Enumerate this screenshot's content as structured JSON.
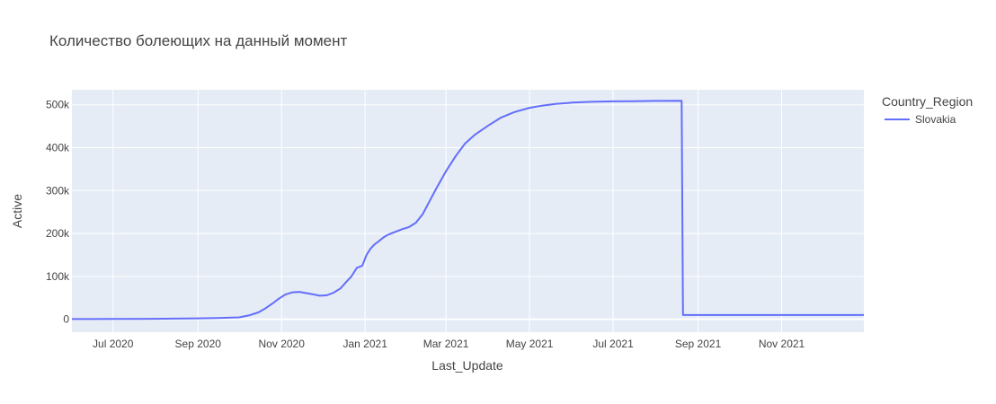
{
  "chart_data": {
    "type": "line",
    "title": "Количество болеющих на данный момент",
    "xlabel": "Last_Update",
    "ylabel": "Active",
    "legend_title": "Country_Region",
    "legend_placement": "top-right",
    "grid": true,
    "colors": {
      "plot_bg": "#E5ECF6",
      "grid": "#ffffff",
      "series": "#636EFA",
      "text": "#444444"
    },
    "x_range": [
      "2020-06-01",
      "2021-12-31"
    ],
    "y_range": [
      -30000,
      535000
    ],
    "x_ticks": [
      {
        "date": "2020-07-01",
        "label": "Jul 2020"
      },
      {
        "date": "2020-09-01",
        "label": "Sep 2020"
      },
      {
        "date": "2020-11-01",
        "label": "Nov 2020"
      },
      {
        "date": "2021-01-01",
        "label": "Jan 2021"
      },
      {
        "date": "2021-03-01",
        "label": "Mar 2021"
      },
      {
        "date": "2021-05-01",
        "label": "May 2021"
      },
      {
        "date": "2021-07-01",
        "label": "Jul 2021"
      },
      {
        "date": "2021-09-01",
        "label": "Sep 2021"
      },
      {
        "date": "2021-11-01",
        "label": "Nov 2021"
      }
    ],
    "y_ticks": [
      {
        "value": 0,
        "label": "0"
      },
      {
        "value": 100000,
        "label": "100k"
      },
      {
        "value": 200000,
        "label": "200k"
      },
      {
        "value": 300000,
        "label": "300k"
      },
      {
        "value": 400000,
        "label": "400k"
      },
      {
        "value": 500000,
        "label": "500k"
      }
    ],
    "series": [
      {
        "name": "Slovakia",
        "x": [
          "2020-06-01",
          "2020-06-15",
          "2020-07-01",
          "2020-07-15",
          "2020-08-01",
          "2020-08-15",
          "2020-09-01",
          "2020-09-15",
          "2020-10-01",
          "2020-10-08",
          "2020-10-15",
          "2020-10-20",
          "2020-10-25",
          "2020-10-30",
          "2020-11-04",
          "2020-11-09",
          "2020-11-14",
          "2020-11-19",
          "2020-11-24",
          "2020-11-29",
          "2020-12-04",
          "2020-12-09",
          "2020-12-14",
          "2020-12-19",
          "2020-12-22",
          "2020-12-26",
          "2020-12-30",
          "2021-01-02",
          "2021-01-05",
          "2021-01-08",
          "2021-01-11",
          "2021-01-14",
          "2021-01-17",
          "2021-01-20",
          "2021-01-24",
          "2021-01-28",
          "2021-02-02",
          "2021-02-07",
          "2021-02-12",
          "2021-02-17",
          "2021-02-22",
          "2021-03-01",
          "2021-03-08",
          "2021-03-15",
          "2021-03-22",
          "2021-04-01",
          "2021-04-10",
          "2021-04-20",
          "2021-05-01",
          "2021-05-10",
          "2021-05-20",
          "2021-06-01",
          "2021-06-15",
          "2021-07-01",
          "2021-07-15",
          "2021-08-01",
          "2021-08-20",
          "2021-08-21",
          "2021-09-15",
          "2021-10-15",
          "2021-11-15",
          "2021-12-31"
        ],
        "values": [
          500,
          600,
          700,
          900,
          1200,
          1600,
          2200,
          3000,
          4500,
          9000,
          16000,
          25000,
          36000,
          48000,
          58000,
          63000,
          64000,
          61000,
          58000,
          55000,
          56000,
          62000,
          72000,
          90000,
          100000,
          120000,
          125000,
          150000,
          165000,
          175000,
          182000,
          190000,
          196000,
          200000,
          205000,
          210000,
          215000,
          225000,
          245000,
          275000,
          305000,
          345000,
          380000,
          410000,
          430000,
          452000,
          470000,
          483000,
          493000,
          498000,
          502000,
          505000,
          507000,
          508000,
          508500,
          509000,
          509500,
          10000,
          10000,
          10000,
          10000,
          10000
        ]
      }
    ]
  }
}
